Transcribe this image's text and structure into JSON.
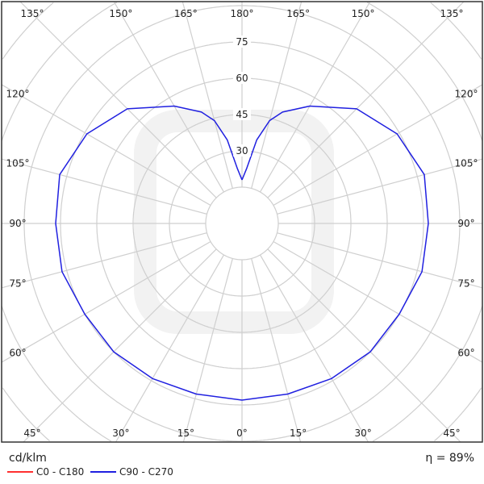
{
  "chart_data": {
    "type": "polar-line",
    "unit": "cd/klm",
    "radial_ticks": [
      30,
      45,
      60,
      75
    ],
    "radial_grid": [
      15,
      30,
      45,
      60,
      75,
      90,
      105,
      120,
      135
    ],
    "angle_step": 15,
    "angle_labels_left": [
      "135°",
      "150°",
      "165°",
      "180°",
      "165°",
      "150°",
      "135°"
    ],
    "angle_labels": {
      "top": [
        "135°",
        "150°",
        "165°",
        "180°",
        "165°",
        "150°",
        "135°"
      ],
      "side": [
        "120°",
        "105°",
        "90°",
        "75°",
        "60°"
      ],
      "bottom": [
        "45°",
        "30°",
        "15°",
        "0°",
        "15°",
        "30°",
        "45°"
      ]
    },
    "grid": true,
    "efficiency": "η = 89%",
    "series": [
      {
        "name": "C0 - C180",
        "color": "#ff3030",
        "gamma": [],
        "values": []
      },
      {
        "name": "C90 - C270",
        "color": "#2020e0",
        "gamma": [
          0,
          15,
          30,
          45,
          60,
          75,
          90,
          105,
          120,
          135,
          150,
          160,
          165,
          170,
          175,
          180
        ],
        "values": [
          73,
          73,
          74,
          75,
          75,
          77,
          77,
          78,
          74,
          67,
          56,
          49,
          44,
          35,
          23,
          18
        ]
      }
    ],
    "legend": "bottom-left"
  }
}
